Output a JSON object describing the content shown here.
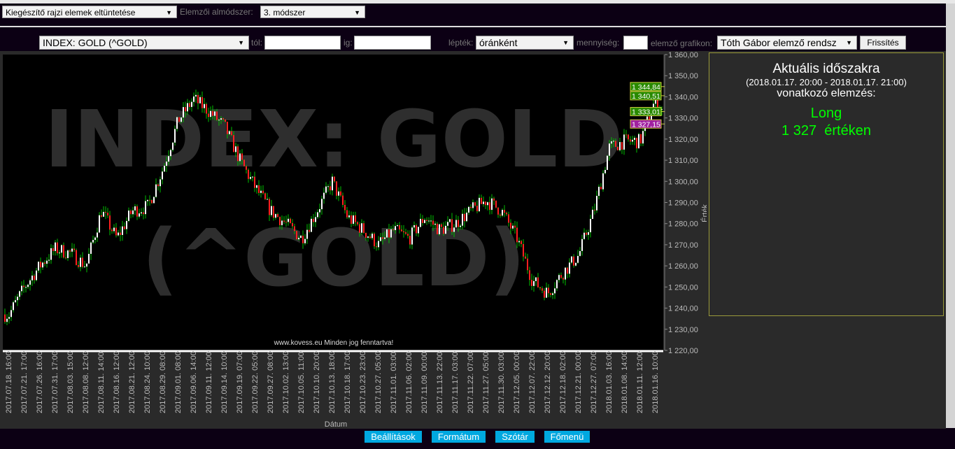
{
  "toolbar1": {
    "drawing_select": "Kiegészítő rajzi elemek eltüntetése",
    "submethod_label": "Elemzői almódszer:",
    "submethod_select": "3. módszer"
  },
  "toolbar2": {
    "instrument_select": "INDEX: GOLD (^GOLD)",
    "from_label": "tól:",
    "from_value": "",
    "to_label": "ig:",
    "to_value": "",
    "scale_label": "lépték:",
    "scale_select": "óránként",
    "quantity_label": "mennyiség:",
    "quantity_value": "",
    "chart_label": "elemző grafikon:",
    "chart_select": "Tóth Gábor elemző rendsz",
    "refresh_button": "Frissítés"
  },
  "analysis": {
    "title": "Aktuális időszakra",
    "period": "(2018.01.17. 20:00 - 2018.01.17. 21:00)",
    "subtitle": "vonatkozó elemzés:",
    "signal": "Long",
    "value": "1 327",
    "value_suffix": "értéken",
    "signal_color": "#00ff00"
  },
  "footer": {
    "settings": "Beállítások",
    "format": "Formátum",
    "dictionary": "Szótár",
    "main_menu": "Főmenü"
  },
  "chart_data": {
    "type": "candlestick",
    "watermark": "INDEX: GOLD (^GOLD)",
    "copyright": "www.kovess.eu Minden jog fenntartva!",
    "xlabel": "Dátum",
    "ylabel": "Érték",
    "ylim": [
      1220,
      1360
    ],
    "yticks": [
      "1 220,00",
      "1 230,00",
      "1 240,00",
      "1 250,00",
      "1 260,00",
      "1 270,00",
      "1 280,00",
      "1 290,00",
      "1 300,00",
      "1 310,00",
      "1 320,00",
      "1 330,00",
      "1 340,00",
      "1 350,00",
      "1 360,00"
    ],
    "xticks": [
      "2017.07.18. 16:00",
      "2017.07.21. 17:00",
      "2017.07.26. 16:00",
      "2017.07.31. 17:00",
      "2017.08.03. 15:00",
      "2017.08.08. 12:00",
      "2017.08.11. 14:00",
      "2017.08.16. 12:00",
      "2017.08.21. 12:00",
      "2017.08.24. 10:00",
      "2017.08.29. 08:00",
      "2017.09.01. 08:00",
      "2017.09.06. 14:00",
      "2017.09.11. 12:00",
      "2017.09.14. 10:00",
      "2017.09.19. 07:00",
      "2017.09.22. 05:00",
      "2017.09.27. 08:00",
      "2017.10.02. 13:00",
      "2017.10.05. 11:00",
      "2017.10.10. 20:00",
      "2017.10.13. 18:00",
      "2017.10.18. 17:00",
      "2017.10.23. 23:00",
      "2017.10.27. 05:00",
      "2017.11.01. 03:00",
      "2017.11.06. 02:00",
      "2017.11.09. 00:00",
      "2017.11.13. 22:00",
      "2017.11.17. 03:00",
      "2017.11.22. 07:00",
      "2017.11.27. 05:00",
      "2017.11.30. 03:00",
      "2017.12.05. 00:00",
      "2017.12.07. 22:00",
      "2017.12.12. 20:00",
      "2017.12.18. 02:00",
      "2017.12.21. 00:00",
      "2017.12.27. 07:00",
      "2018.01.03. 16:00",
      "2018.01.08. 14:00",
      "2018.01.11. 12:00",
      "2018.01.16. 10:00"
    ],
    "approx_close_at_ticks": [
      1237,
      1250,
      1260,
      1268,
      1266,
      1260,
      1286,
      1273,
      1286,
      1288,
      1306,
      1329,
      1339,
      1333,
      1326,
      1310,
      1297,
      1286,
      1280,
      1273,
      1286,
      1300,
      1283,
      1277,
      1270,
      1277,
      1273,
      1283,
      1277,
      1280,
      1286,
      1291,
      1286,
      1273,
      1253,
      1247,
      1257,
      1265,
      1286,
      1316,
      1319,
      1319,
      1339
    ],
    "last_close": 1327,
    "price_labels": [
      {
        "value": "1 344,84",
        "color": "#2a8a00"
      },
      {
        "value": "1 340,51",
        "color": "#2a8a00"
      },
      {
        "value": "1 333,01",
        "color": "#2a8a00"
      },
      {
        "value": "1 327,15",
        "color": "#a020a0"
      }
    ],
    "up_color": "#ffffff",
    "down_color": "#ff2020",
    "wick_color": "#00c000"
  }
}
